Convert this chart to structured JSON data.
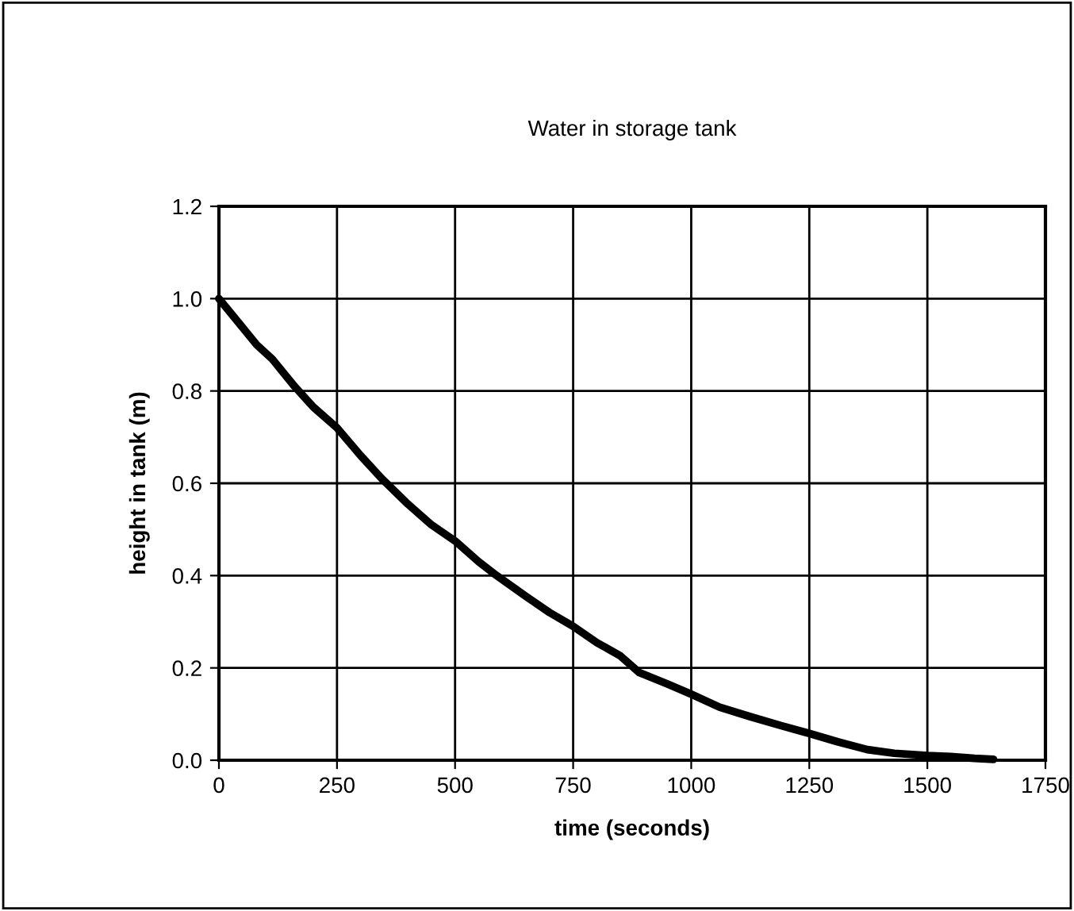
{
  "chart_data": {
    "type": "line",
    "title": "Water in storage tank",
    "xlabel": "time (seconds)",
    "ylabel": "height in tank (m)",
    "x": [
      0,
      40,
      80,
      113,
      160,
      200,
      250,
      300,
      345,
      400,
      450,
      500,
      550,
      588,
      650,
      700,
      750,
      800,
      850,
      890,
      950,
      1000,
      1060,
      1123,
      1190,
      1250,
      1310,
      1373,
      1430,
      1500,
      1549,
      1600,
      1640
    ],
    "series": [
      {
        "color": "#000000",
        "values": [
          1.0,
          0.95,
          0.9,
          0.869,
          0.81,
          0.765,
          0.72,
          0.66,
          0.61,
          0.555,
          0.51,
          0.475,
          0.43,
          0.4,
          0.355,
          0.32,
          0.29,
          0.255,
          0.226,
          0.19,
          0.165,
          0.143,
          0.115,
          0.095,
          0.075,
          0.058,
          0.04,
          0.023,
          0.015,
          0.01,
          0.008,
          0.004,
          0.002
        ]
      }
    ],
    "xlim": [
      0,
      1750
    ],
    "ylim": [
      0.0,
      1.2
    ],
    "xticks": [
      0,
      250,
      500,
      750,
      1000,
      1250,
      1500,
      1750
    ],
    "yticks": [
      {
        "value": 0,
        "label": "0.0"
      },
      {
        "value": 0.2,
        "label": "0.2"
      },
      {
        "value": 0.4,
        "label": "0.4"
      },
      {
        "value": 0.6,
        "label": "0.6"
      },
      {
        "value": 0.8,
        "label": "0.8"
      },
      {
        "value": 1.0,
        "label": "1.0"
      },
      {
        "value": 1.2,
        "label": "1.2"
      }
    ],
    "grid": true,
    "marker": "none",
    "line_style": "solid"
  }
}
